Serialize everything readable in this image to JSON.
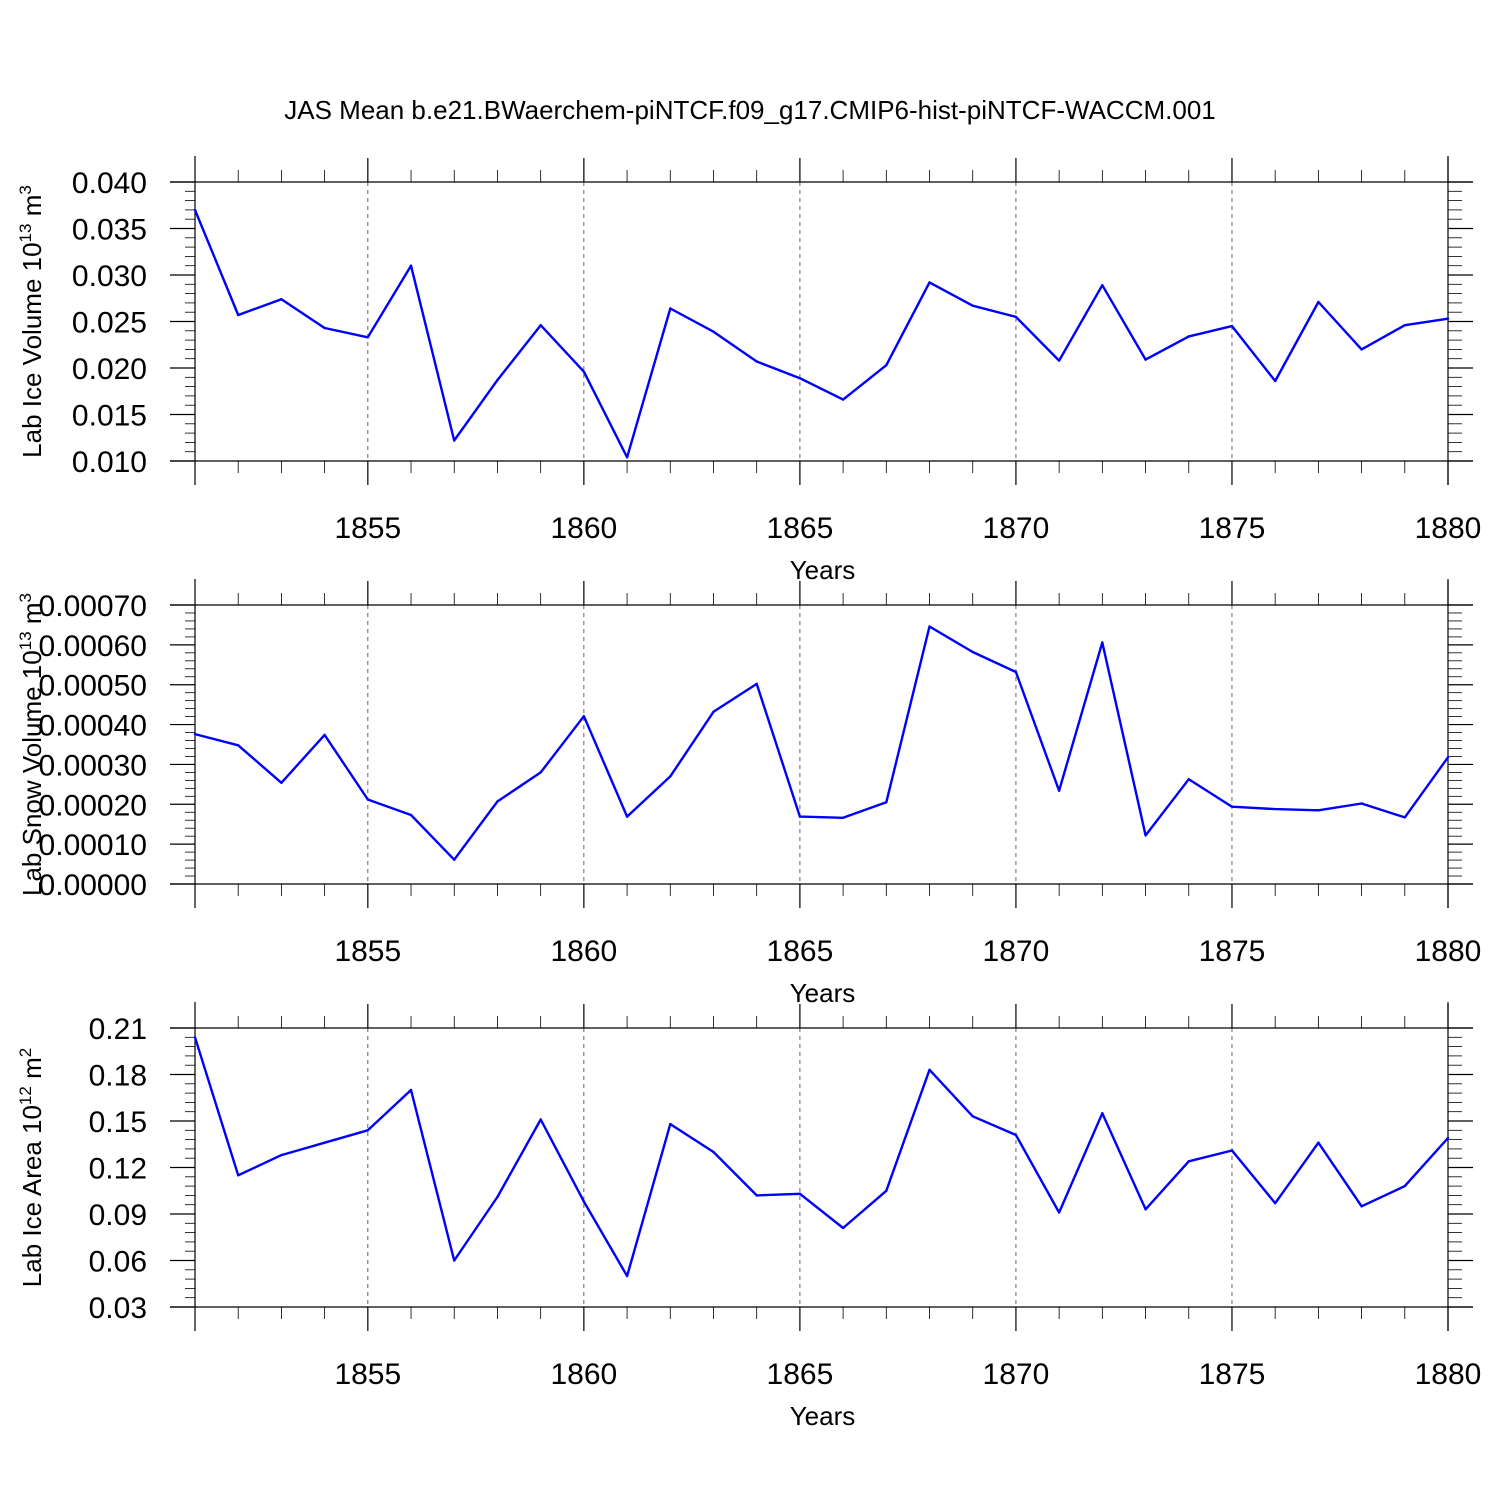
{
  "figure": {
    "title": "JAS Mean b.e21.BWaerchem-piNTCF.f09_g17.CMIP6-hist-piNTCF-WACCM.001"
  },
  "colors": {
    "series": "#0000ff",
    "axes": "#000000",
    "grid": "#555555"
  },
  "chart_data": [
    {
      "type": "line",
      "title": "",
      "xlabel": "Years",
      "ylabel_parts": [
        "Lab Ice Volume 10",
        "13",
        " m",
        "3"
      ],
      "xlim": [
        1851,
        1880
      ],
      "ylim": [
        0.01,
        0.04
      ],
      "x_ticks": [
        1855,
        1860,
        1865,
        1870,
        1875,
        1880
      ],
      "x_tick_labels": [
        "1855",
        "1860",
        "1865",
        "1870",
        "1875",
        "1880"
      ],
      "y_ticks": [
        0.01,
        0.015,
        0.02,
        0.025,
        0.03,
        0.035,
        0.04
      ],
      "y_tick_labels": [
        "0.010",
        "0.015",
        "0.020",
        "0.025",
        "0.030",
        "0.035",
        "0.040"
      ],
      "grid": "vertical dashed at labeled years",
      "x": [
        1851,
        1852,
        1853,
        1854,
        1855,
        1856,
        1857,
        1858,
        1859,
        1860,
        1861,
        1862,
        1863,
        1864,
        1865,
        1866,
        1867,
        1868,
        1869,
        1870,
        1871,
        1872,
        1873,
        1874,
        1875,
        1876,
        1877,
        1878,
        1879,
        1880
      ],
      "y": [
        0.037,
        0.0257,
        0.0274,
        0.0243,
        0.0233,
        0.031,
        0.0122,
        0.0187,
        0.0246,
        0.0196,
        0.0104,
        0.0264,
        0.0239,
        0.0207,
        0.0189,
        0.0166,
        0.0203,
        0.0292,
        0.0267,
        0.0255,
        0.0208,
        0.0289,
        0.0209,
        0.0234,
        0.0245,
        0.0186,
        0.0271,
        0.022,
        0.0246,
        0.0253
      ]
    },
    {
      "type": "line",
      "title": "",
      "xlabel": "Years",
      "ylabel_parts": [
        "Lab Snow Volume 10",
        "13",
        " m",
        "3"
      ],
      "xlim": [
        1851,
        1880
      ],
      "ylim": [
        0.0,
        0.0007
      ],
      "x_ticks": [
        1855,
        1860,
        1865,
        1870,
        1875,
        1880
      ],
      "x_tick_labels": [
        "1855",
        "1860",
        "1865",
        "1870",
        "1875",
        "1880"
      ],
      "y_ticks": [
        0.0,
        0.0001,
        0.0002,
        0.0003,
        0.0004,
        0.0005,
        0.0006,
        0.0007
      ],
      "y_tick_labels": [
        "0.00000",
        "0.00010",
        "0.00020",
        "0.00030",
        "0.00040",
        "0.00050",
        "0.00060",
        "0.00070"
      ],
      "grid": "vertical dashed at labeled years",
      "x": [
        1851,
        1852,
        1853,
        1854,
        1855,
        1856,
        1857,
        1858,
        1859,
        1860,
        1861,
        1862,
        1863,
        1864,
        1865,
        1866,
        1867,
        1868,
        1869,
        1870,
        1871,
        1872,
        1873,
        1874,
        1875,
        1876,
        1877,
        1878,
        1879,
        1880
      ],
      "y": [
        0.000376,
        0.000348,
        0.000254,
        0.000374,
        0.000212,
        0.000173,
        6.1e-05,
        0.000207,
        0.00028,
        0.000421,
        0.000169,
        0.00027,
        0.000432,
        0.000502,
        0.000169,
        0.000166,
        0.000205,
        0.000646,
        0.000582,
        0.000532,
        0.000234,
        0.000606,
        0.000122,
        0.000263,
        0.000194,
        0.000188,
        0.000185,
        0.000202,
        0.000167,
        0.000318
      ]
    },
    {
      "type": "line",
      "title": "",
      "xlabel": "Years",
      "ylabel_parts": [
        "Lab Ice Area 10",
        "12",
        " m",
        "2"
      ],
      "xlim": [
        1851,
        1880
      ],
      "ylim": [
        0.03,
        0.21
      ],
      "x_ticks": [
        1855,
        1860,
        1865,
        1870,
        1875,
        1880
      ],
      "x_tick_labels": [
        "1855",
        "1860",
        "1865",
        "1870",
        "1875",
        "1880"
      ],
      "y_ticks": [
        0.03,
        0.06,
        0.09,
        0.12,
        0.15,
        0.18,
        0.21
      ],
      "y_tick_labels": [
        "0.03",
        "0.06",
        "0.09",
        "0.12",
        "0.15",
        "0.18",
        "0.21"
      ],
      "grid": "vertical dashed at labeled years",
      "x": [
        1851,
        1852,
        1853,
        1854,
        1855,
        1856,
        1857,
        1858,
        1859,
        1860,
        1861,
        1862,
        1863,
        1864,
        1865,
        1866,
        1867,
        1868,
        1869,
        1870,
        1871,
        1872,
        1873,
        1874,
        1875,
        1876,
        1877,
        1878,
        1879,
        1880
      ],
      "y": [
        0.204,
        0.115,
        0.128,
        0.136,
        0.144,
        0.17,
        0.06,
        0.101,
        0.151,
        0.098,
        0.05,
        0.148,
        0.13,
        0.102,
        0.103,
        0.081,
        0.105,
        0.183,
        0.153,
        0.141,
        0.091,
        0.155,
        0.093,
        0.124,
        0.131,
        0.097,
        0.136,
        0.095,
        0.108,
        0.139
      ]
    }
  ]
}
